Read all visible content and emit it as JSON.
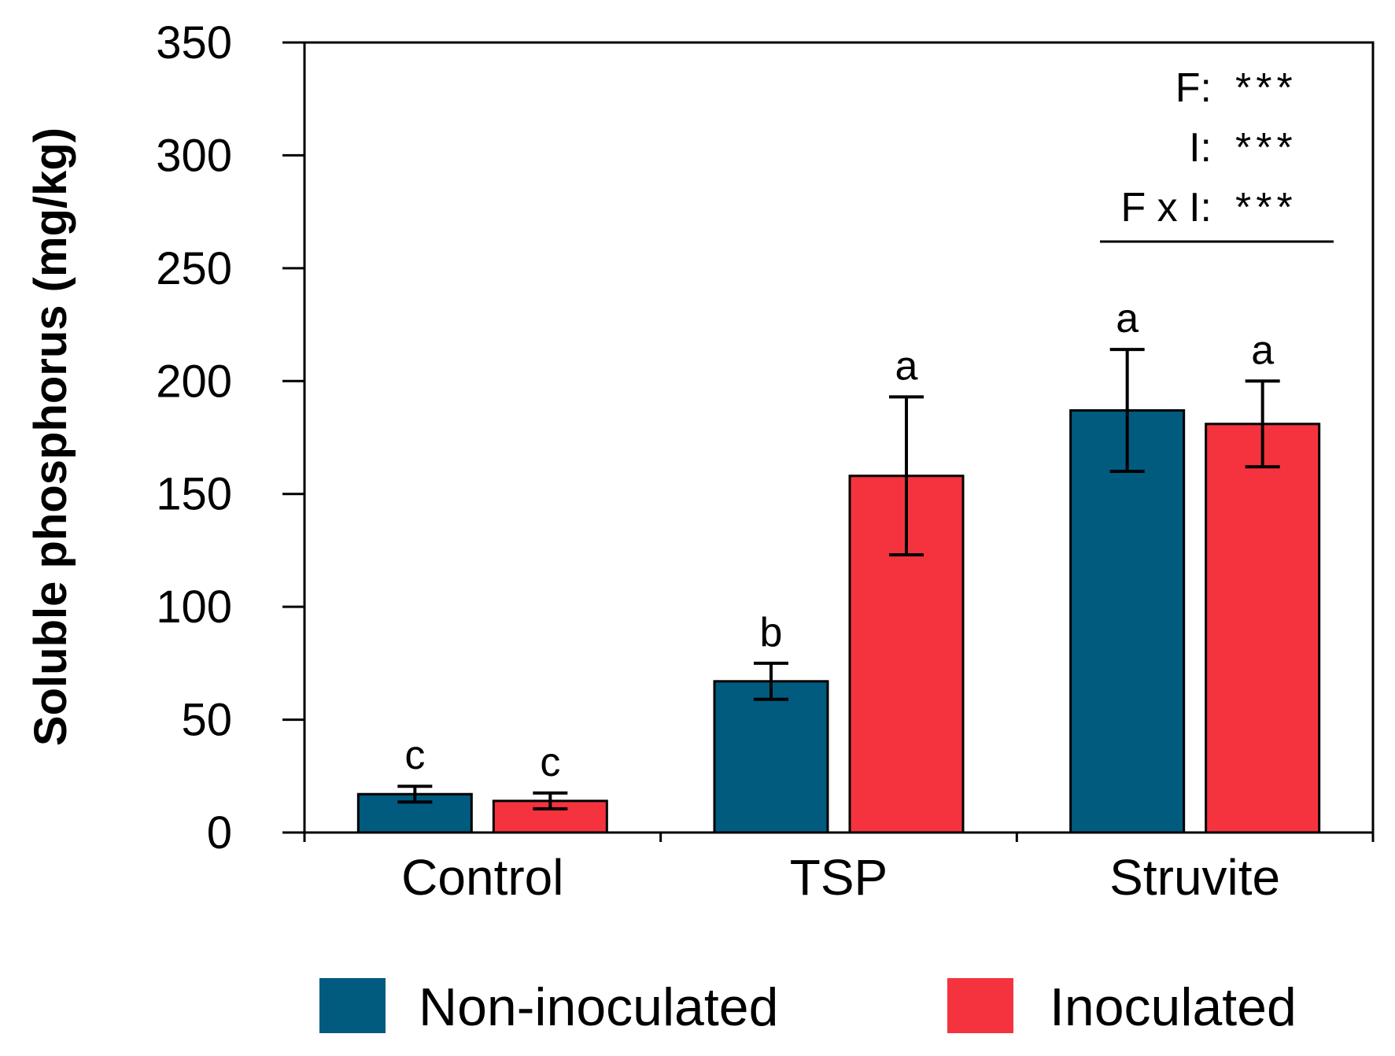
{
  "chart_data": {
    "type": "bar",
    "ylabel": "Soluble phosphorus (mg/kg)",
    "ylim": [
      0,
      350
    ],
    "yticks": [
      0,
      50,
      100,
      150,
      200,
      250,
      300,
      350
    ],
    "grid": false,
    "categories": [
      "Control",
      "TSP",
      "Struvite"
    ],
    "series": [
      {
        "name": "Non-inoculated",
        "color": "#005b7f",
        "values": [
          17,
          67,
          187
        ],
        "errors": [
          3.5,
          8,
          27
        ],
        "letters": [
          "c",
          "b",
          "a"
        ]
      },
      {
        "name": "Inoculated",
        "color": "#f5333f",
        "values": [
          14,
          158,
          181
        ],
        "errors": [
          3.5,
          35,
          19
        ],
        "letters": [
          "c",
          "a",
          "a"
        ]
      }
    ],
    "annotations": [
      {
        "label": "F:",
        "value": "***"
      },
      {
        "label": "I:",
        "value": "***"
      },
      {
        "label": "F x I:",
        "value": "***"
      }
    ],
    "legend_position": "bottom"
  }
}
